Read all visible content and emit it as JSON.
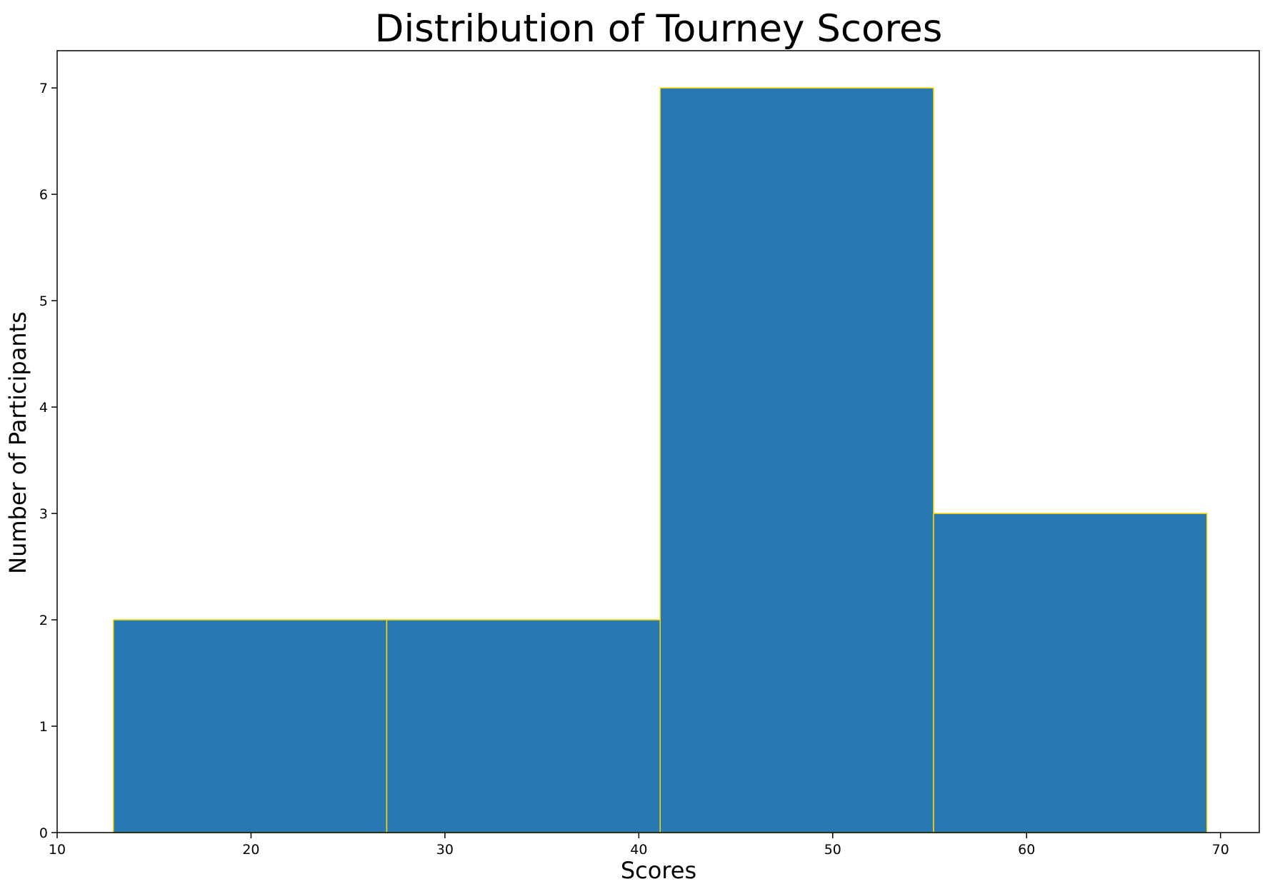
{
  "chart_data": {
    "type": "bar",
    "title": "Distribution of Tourney Scores",
    "xlabel": "Scores",
    "ylabel": "Number of Participants",
    "xlim": [
      10,
      72
    ],
    "ylim": [
      0,
      7.35
    ],
    "bins": [
      {
        "start": 12.9,
        "end": 27.0,
        "count": 2
      },
      {
        "start": 27.0,
        "end": 41.1,
        "count": 2
      },
      {
        "start": 41.1,
        "end": 55.2,
        "count": 7
      },
      {
        "start": 55.2,
        "end": 69.3,
        "count": 3
      }
    ],
    "xticks": [
      10,
      20,
      30,
      40,
      50,
      60,
      70
    ],
    "yticks": [
      0,
      1,
      2,
      3,
      4,
      5,
      6,
      7
    ],
    "bar_color": "#2878b1",
    "edge_color": "#ffd700",
    "grid": false,
    "legend": "none"
  }
}
